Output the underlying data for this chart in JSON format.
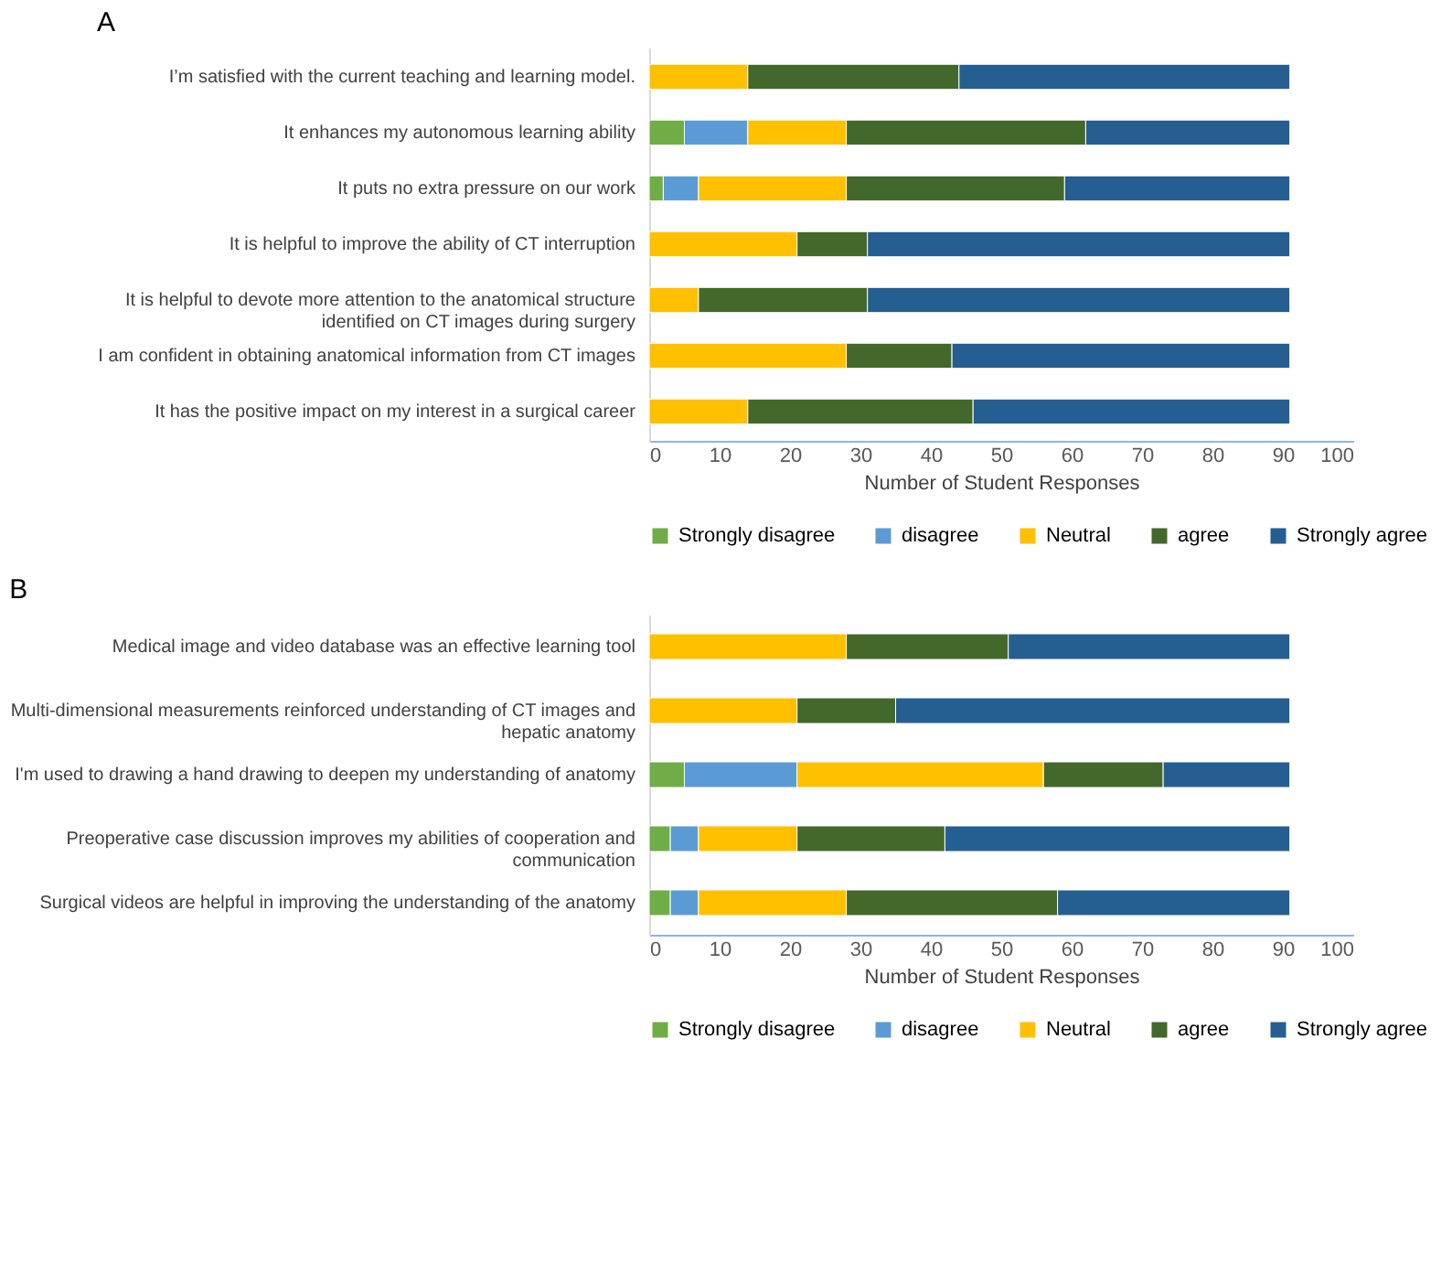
{
  "chart_data": [
    {
      "type": "bar",
      "orientation": "horizontal",
      "stacked": true,
      "title": "A",
      "xlabel": "Number of Student Responses",
      "xlim": [
        0,
        100
      ],
      "xticks": [
        0,
        10,
        20,
        30,
        40,
        50,
        60,
        70,
        80,
        90,
        100
      ],
      "grid": false,
      "legend": "bottom",
      "categories": [
        "I’m satisfied with the current teaching and learning model.",
        "It enhances my autonomous learning ability",
        "It puts no extra pressure on our work",
        "It is helpful to improve the ability of CT interruption",
        "It is helpful to devote more attention to the anatomical structure identified on CT images during surgery",
        "I am confident in obtaining anatomical information from CT images",
        "It has the positive impact on my interest in a surgical career"
      ],
      "series": [
        {
          "name": "Strongly disagree",
          "color": "#70ad47",
          "values": [
            0,
            5,
            2,
            0,
            0,
            0,
            0
          ]
        },
        {
          "name": "disagree",
          "color": "#5b9bd5",
          "values": [
            0,
            9,
            5,
            0,
            0,
            0,
            0
          ]
        },
        {
          "name": "Neutral",
          "color": "#ffc000",
          "values": [
            14,
            14,
            21,
            21,
            7,
            28,
            14
          ]
        },
        {
          "name": "agree",
          "color": "#43682b",
          "values": [
            30,
            34,
            31,
            10,
            24,
            15,
            32
          ]
        },
        {
          "name": "Strongly agree",
          "color": "#255e91",
          "values": [
            47,
            29,
            32,
            60,
            60,
            48,
            45
          ]
        }
      ]
    },
    {
      "type": "bar",
      "orientation": "horizontal",
      "stacked": true,
      "title": "B",
      "xlabel": "Number of Student Responses",
      "xlim": [
        0,
        100
      ],
      "xticks": [
        0,
        10,
        20,
        30,
        40,
        50,
        60,
        70,
        80,
        90,
        100
      ],
      "grid": false,
      "legend": "bottom",
      "categories": [
        "Medical image and video database was an effective learning tool",
        "Multi-dimensional measurements reinforced understanding of CT images and hepatic anatomy",
        "I'm used to drawing a hand drawing to deepen my understanding of anatomy",
        "Preoperative case discussion improves my abilities of cooperation and communication",
        "Surgical videos are helpful in improving the understanding of the anatomy"
      ],
      "series": [
        {
          "name": "Strongly disagree",
          "color": "#70ad47",
          "values": [
            0,
            0,
            5,
            3,
            3
          ]
        },
        {
          "name": "disagree",
          "color": "#5b9bd5",
          "values": [
            0,
            0,
            16,
            4,
            4
          ]
        },
        {
          "name": "Neutral",
          "color": "#ffc000",
          "values": [
            28,
            21,
            35,
            14,
            21
          ]
        },
        {
          "name": "agree",
          "color": "#43682b",
          "values": [
            23,
            14,
            17,
            21,
            30
          ]
        },
        {
          "name": "Strongly agree",
          "color": "#255e91",
          "values": [
            40,
            56,
            18,
            49,
            33
          ]
        }
      ]
    }
  ]
}
